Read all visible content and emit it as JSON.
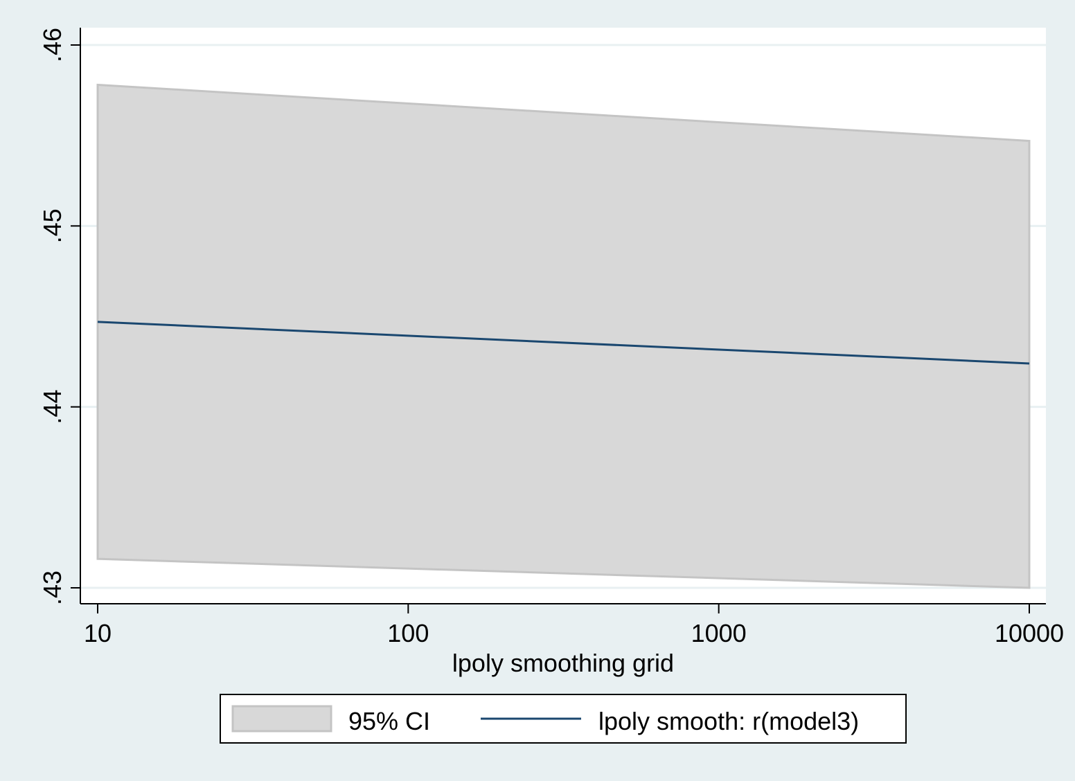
{
  "chart_data": {
    "type": "area",
    "title": "",
    "xlabel": "lpoly smoothing grid",
    "ylabel": "",
    "x_scale": "log",
    "xlim": [
      8.7,
      11000
    ],
    "ylim": [
      0.429,
      0.461
    ],
    "x_ticks": [
      {
        "value": 10,
        "label": "10"
      },
      {
        "value": 100,
        "label": "100"
      },
      {
        "value": 1000,
        "label": "1000"
      },
      {
        "value": 10000,
        "label": "10000"
      }
    ],
    "y_ticks": [
      {
        "value": 0.43,
        "label": ".43"
      },
      {
        "value": 0.44,
        "label": ".44"
      },
      {
        "value": 0.45,
        "label": ".45"
      },
      {
        "value": 0.46,
        "label": ".46"
      }
    ],
    "grid": true,
    "legend_position": "bottom",
    "ci": {
      "name": "95% CI",
      "x": [
        10,
        10000
      ],
      "lower": [
        0.4316,
        0.43
      ],
      "upper": [
        0.4578,
        0.4547
      ]
    },
    "series": [
      {
        "name": "lpoly smooth: r(model3)",
        "x": [
          10,
          10000
        ],
        "values": [
          0.4447,
          0.4424
        ]
      }
    ],
    "colors": {
      "background": "#e8f0f2",
      "plot_area": "#ffffff",
      "gridline": "#e8f0f2",
      "ci_fill": "#d8d8d8",
      "ci_edge": "#c4c4c4",
      "line": "#1a476f"
    }
  }
}
